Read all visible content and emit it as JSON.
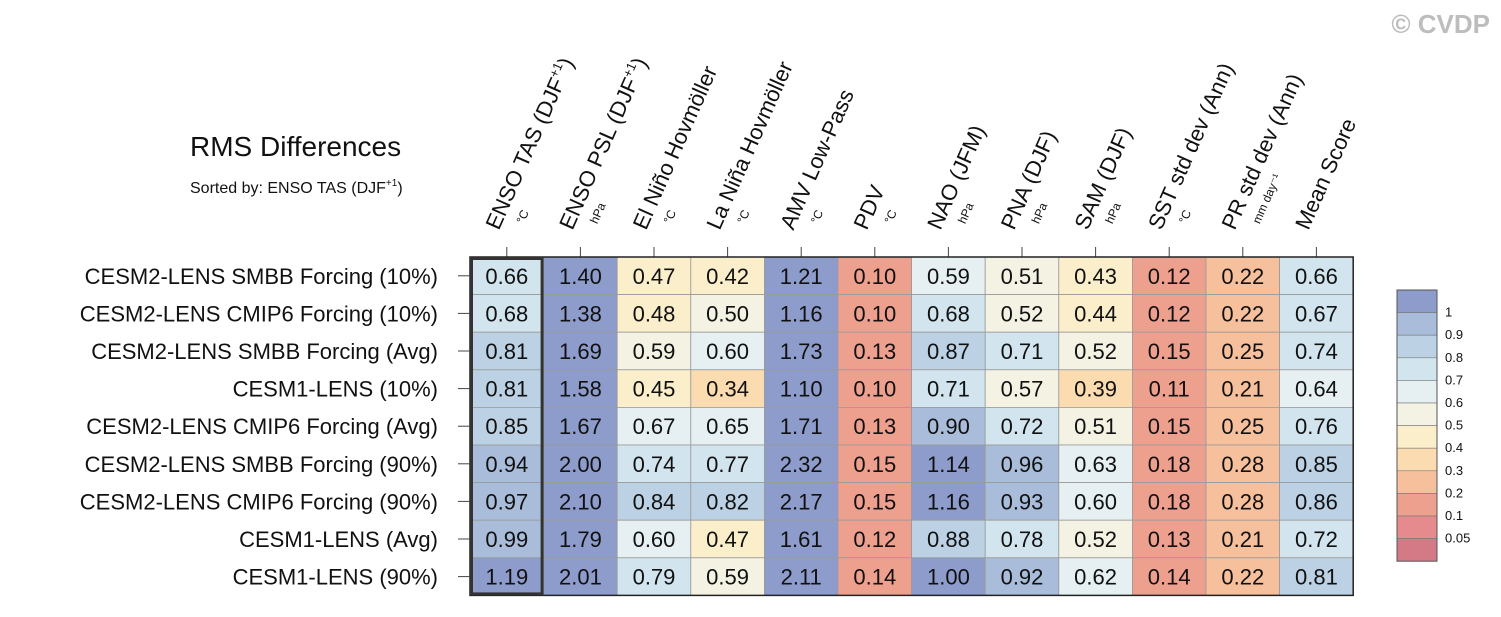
{
  "watermark": "© CVDP",
  "chart_data": {
    "type": "heatmap",
    "title": "RMS Differences",
    "subtitle": "Sorted by: ENSO TAS (DJF",
    "subtitle_sup": "+1",
    "subtitle_end": ")",
    "columns": [
      {
        "label": "ENSO TAS (DJF",
        "sup": "+1",
        "end": ")",
        "unit": "°C"
      },
      {
        "label": "ENSO PSL (DJF",
        "sup": "+1",
        "end": ")",
        "unit": "hPa"
      },
      {
        "label": "El Niño Hovmöller",
        "sup": "",
        "end": "",
        "unit": "°C"
      },
      {
        "label": "La Niña Hovmöller",
        "sup": "",
        "end": "",
        "unit": "°C"
      },
      {
        "label": "AMV Low-Pass",
        "sup": "",
        "end": "",
        "unit": "°C"
      },
      {
        "label": "PDV",
        "sup": "",
        "end": "",
        "unit": "°C"
      },
      {
        "label": "NAO (JFM)",
        "sup": "",
        "end": "",
        "unit": "hPa"
      },
      {
        "label": "PNA (DJF)",
        "sup": "",
        "end": "",
        "unit": "hPa"
      },
      {
        "label": "SAM (DJF)",
        "sup": "",
        "end": "",
        "unit": "hPa"
      },
      {
        "label": "SST std dev (Ann)",
        "sup": "",
        "end": "",
        "unit": "°C"
      },
      {
        "label": "PR std dev (Ann)",
        "sup": "",
        "end": "",
        "unit": "mm day⁻¹"
      },
      {
        "label": "Mean Score",
        "sup": "",
        "end": "",
        "unit": ""
      }
    ],
    "rows": [
      "CESM2-LENS SMBB Forcing (10%)",
      "CESM2-LENS CMIP6 Forcing (10%)",
      "CESM2-LENS SMBB Forcing (Avg)",
      "CESM1-LENS (10%)",
      "CESM2-LENS CMIP6 Forcing (Avg)",
      "CESM2-LENS SMBB Forcing (90%)",
      "CESM2-LENS CMIP6 Forcing (90%)",
      "CESM1-LENS (Avg)",
      "CESM1-LENS (90%)"
    ],
    "values": [
      [
        "0.66",
        "1.40",
        "0.47",
        "0.42",
        "1.21",
        "0.10",
        "0.59",
        "0.51",
        "0.43",
        "0.12",
        "0.22",
        "0.66"
      ],
      [
        "0.68",
        "1.38",
        "0.48",
        "0.50",
        "1.16",
        "0.10",
        "0.68",
        "0.52",
        "0.44",
        "0.12",
        "0.22",
        "0.67"
      ],
      [
        "0.81",
        "1.69",
        "0.59",
        "0.60",
        "1.73",
        "0.13",
        "0.87",
        "0.71",
        "0.52",
        "0.15",
        "0.25",
        "0.74"
      ],
      [
        "0.81",
        "1.58",
        "0.45",
        "0.34",
        "1.10",
        "0.10",
        "0.71",
        "0.57",
        "0.39",
        "0.11",
        "0.21",
        "0.64"
      ],
      [
        "0.85",
        "1.67",
        "0.67",
        "0.65",
        "1.71",
        "0.13",
        "0.90",
        "0.72",
        "0.51",
        "0.15",
        "0.25",
        "0.76"
      ],
      [
        "0.94",
        "2.00",
        "0.74",
        "0.77",
        "2.32",
        "0.15",
        "1.14",
        "0.96",
        "0.63",
        "0.18",
        "0.28",
        "0.85"
      ],
      [
        "0.97",
        "2.10",
        "0.84",
        "0.82",
        "2.17",
        "0.15",
        "1.16",
        "0.93",
        "0.60",
        "0.18",
        "0.28",
        "0.86"
      ],
      [
        "0.99",
        "1.79",
        "0.60",
        "0.47",
        "1.61",
        "0.12",
        "0.88",
        "0.78",
        "0.52",
        "0.13",
        "0.21",
        "0.72"
      ],
      [
        "1.19",
        "2.01",
        "0.79",
        "0.59",
        "2.11",
        "0.14",
        "1.00",
        "0.92",
        "0.62",
        "0.14",
        "0.22",
        "0.81"
      ]
    ],
    "highlighted_column": 0,
    "legend": {
      "placement": "right",
      "levels": [
        "1",
        "0.9",
        "0.8",
        "0.7",
        "0.6",
        "0.5",
        "0.4",
        "0.3",
        "0.2",
        "0.1",
        "0.05"
      ],
      "colors": [
        "#8e9ccb",
        "#a9bcd9",
        "#bcd2e4",
        "#d2e4ee",
        "#e6f0f2",
        "#f3f2e3",
        "#fbeecb",
        "#fbdcb0",
        "#f6c09c",
        "#eea08f",
        "#e58b8d",
        "#d47a87"
      ]
    },
    "cell_colors": [
      [
        "#d2e4ee",
        "#8e9ccb",
        "#fbeecb",
        "#fbeecb",
        "#8e9ccb",
        "#eea08f",
        "#e6f0f2",
        "#f3f2e3",
        "#fbeecb",
        "#eea08f",
        "#f6c09c",
        "#d2e4ee"
      ],
      [
        "#d2e4ee",
        "#8e9ccb",
        "#fbeecb",
        "#f3f2e3",
        "#8e9ccb",
        "#eea08f",
        "#d2e4ee",
        "#f3f2e3",
        "#fbeecb",
        "#eea08f",
        "#f6c09c",
        "#d2e4ee"
      ],
      [
        "#bcd2e4",
        "#8e9ccb",
        "#f3f2e3",
        "#e6f0f2",
        "#8e9ccb",
        "#eea08f",
        "#bcd2e4",
        "#d2e4ee",
        "#f3f2e3",
        "#eea08f",
        "#f6c09c",
        "#d2e4ee"
      ],
      [
        "#bcd2e4",
        "#8e9ccb",
        "#fbeecb",
        "#fbdcb0",
        "#8e9ccb",
        "#eea08f",
        "#d2e4ee",
        "#f3f2e3",
        "#fbdcb0",
        "#eea08f",
        "#f6c09c",
        "#e6f0f2"
      ],
      [
        "#bcd2e4",
        "#8e9ccb",
        "#e6f0f2",
        "#e6f0f2",
        "#8e9ccb",
        "#eea08f",
        "#a9bcd9",
        "#d2e4ee",
        "#f3f2e3",
        "#eea08f",
        "#f6c09c",
        "#d2e4ee"
      ],
      [
        "#a9bcd9",
        "#8e9ccb",
        "#d2e4ee",
        "#d2e4ee",
        "#8e9ccb",
        "#eea08f",
        "#8e9ccb",
        "#a9bcd9",
        "#e6f0f2",
        "#eea08f",
        "#f6c09c",
        "#bcd2e4"
      ],
      [
        "#a9bcd9",
        "#8e9ccb",
        "#bcd2e4",
        "#bcd2e4",
        "#8e9ccb",
        "#eea08f",
        "#8e9ccb",
        "#a9bcd9",
        "#e6f0f2",
        "#eea08f",
        "#f6c09c",
        "#bcd2e4"
      ],
      [
        "#a9bcd9",
        "#8e9ccb",
        "#e6f0f2",
        "#fbeecb",
        "#8e9ccb",
        "#eea08f",
        "#bcd2e4",
        "#d2e4ee",
        "#f3f2e3",
        "#eea08f",
        "#f6c09c",
        "#d2e4ee"
      ],
      [
        "#8e9ccb",
        "#8e9ccb",
        "#d2e4ee",
        "#f3f2e3",
        "#8e9ccb",
        "#eea08f",
        "#8e9ccb",
        "#a9bcd9",
        "#e6f0f2",
        "#eea08f",
        "#f6c09c",
        "#bcd2e4"
      ]
    ]
  }
}
